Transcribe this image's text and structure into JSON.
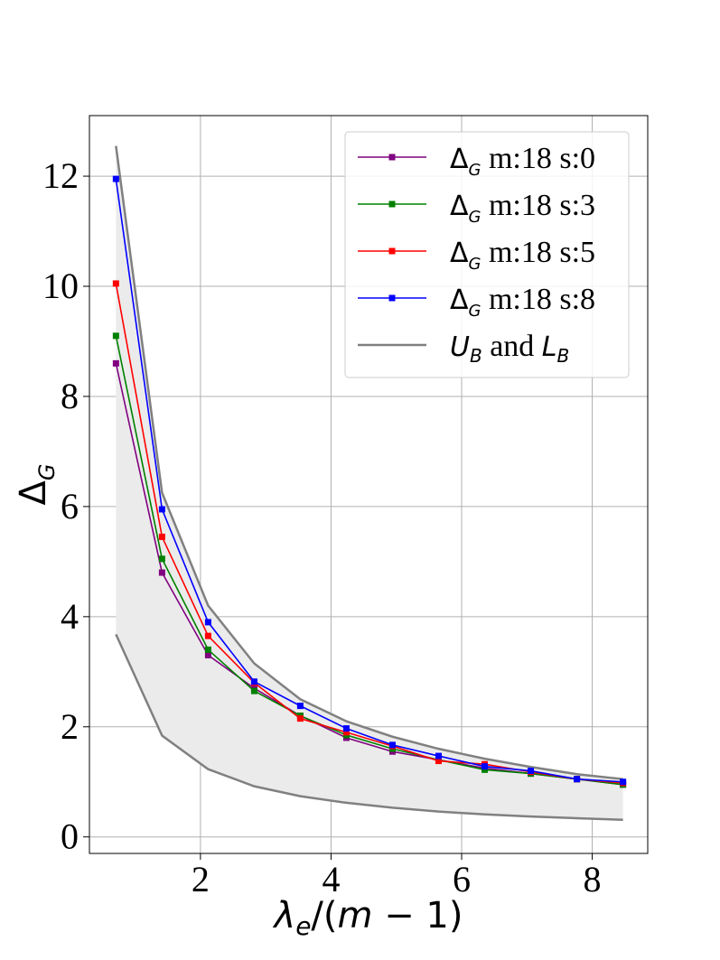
{
  "chart_data": {
    "type": "line",
    "xlabel": "λe/(m − 1)",
    "ylabel": "ΔG",
    "xlim": [
      0.3,
      8.85
    ],
    "ylim": [
      -0.3,
      13.1
    ],
    "xticks": [
      2,
      4,
      6,
      8
    ],
    "yticks": [
      0,
      2,
      4,
      6,
      8,
      10,
      12
    ],
    "grid": true,
    "legend_position": "top-right",
    "x": [
      0.706,
      1.412,
      2.118,
      2.824,
      3.529,
      4.235,
      4.941,
      5.647,
      6.353,
      7.059,
      7.765,
      8.471
    ],
    "series": [
      {
        "name": "ΔG m:18 s:0",
        "label_prefix": "Δ",
        "label_sub": "G",
        "label_rest": " m:18 s:0",
        "color": "#800080",
        "values": [
          8.6,
          4.8,
          3.3,
          2.7,
          2.2,
          1.8,
          1.55,
          1.4,
          1.25,
          1.15,
          1.05,
          0.95
        ]
      },
      {
        "name": "ΔG m:18 s:3",
        "label_prefix": "Δ",
        "label_sub": "G",
        "label_rest": " m:18 s:3",
        "color": "#008000",
        "values": [
          9.1,
          5.05,
          3.4,
          2.65,
          2.2,
          1.85,
          1.6,
          1.4,
          1.22,
          1.15,
          1.05,
          0.95
        ]
      },
      {
        "name": "ΔG m:18 s:5",
        "label_prefix": "Δ",
        "label_sub": "G",
        "label_rest": " m:18 s:5",
        "color": "#ff0000",
        "values": [
          10.05,
          5.45,
          3.65,
          2.8,
          2.15,
          1.9,
          1.65,
          1.38,
          1.32,
          1.18,
          1.05,
          0.98
        ]
      },
      {
        "name": "ΔG m:18 s:8",
        "label_prefix": "Δ",
        "label_sub": "G",
        "label_rest": " m:18 s:8",
        "color": "#0000ff",
        "values": [
          11.95,
          5.95,
          3.9,
          2.82,
          2.38,
          1.97,
          1.67,
          1.47,
          1.28,
          1.2,
          1.05,
          1.0
        ]
      }
    ],
    "bounds": {
      "name": "UB and LB",
      "label_u": "U",
      "label_usub": "B",
      "label_and": " and ",
      "label_l": "L",
      "label_lsub": "B",
      "color": "#808080",
      "fill_color": "#ebebeb",
      "upper": [
        12.55,
        6.25,
        4.2,
        3.15,
        2.5,
        2.1,
        1.82,
        1.6,
        1.42,
        1.27,
        1.14,
        1.05
      ],
      "lower": [
        3.68,
        1.84,
        1.23,
        0.92,
        0.74,
        0.62,
        0.53,
        0.46,
        0.41,
        0.37,
        0.34,
        0.31
      ]
    }
  }
}
